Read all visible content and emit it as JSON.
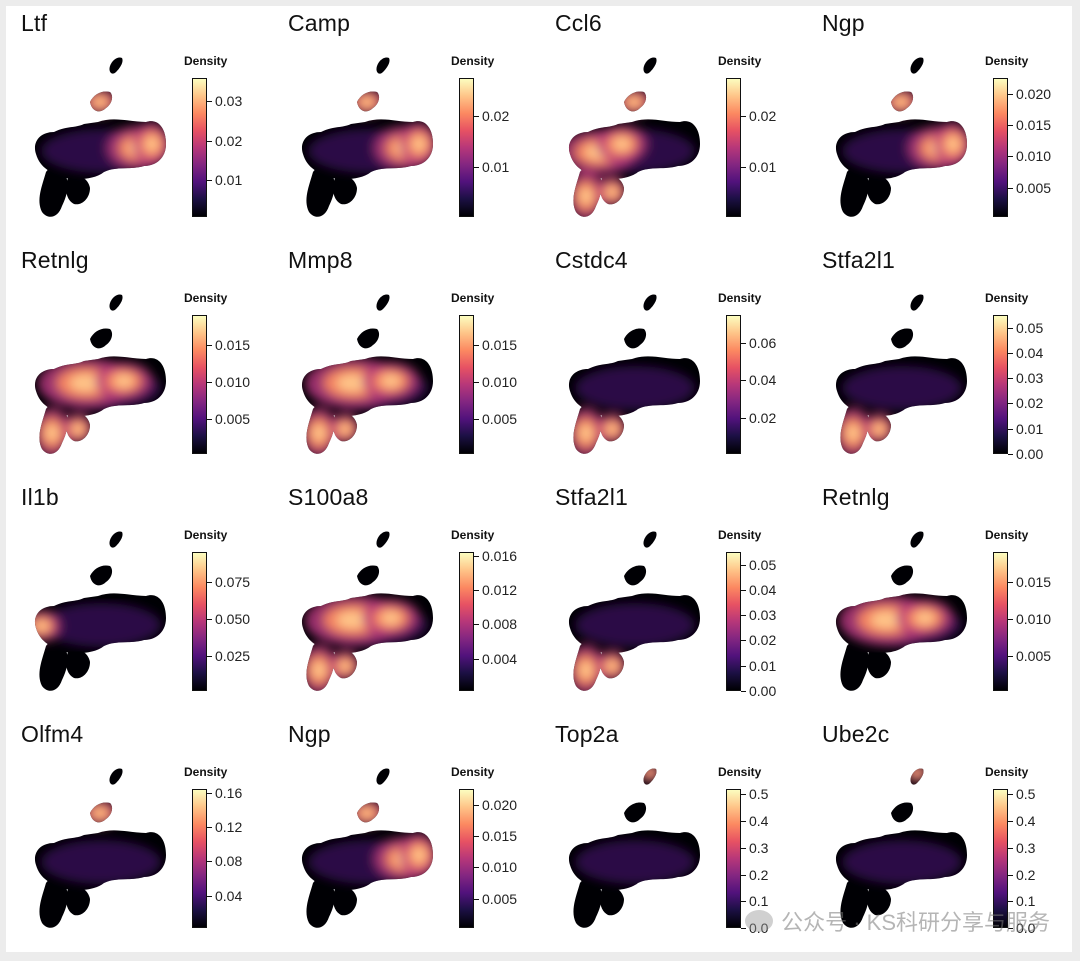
{
  "colors": {
    "scale": [
      "#000004",
      "#1c1044",
      "#51127c",
      "#832681",
      "#b73779",
      "#e75263",
      "#fc8961",
      "#fec488",
      "#fcfdbf"
    ]
  },
  "watermark": {
    "icon": "wechat-icon",
    "text": "公众号 · KS科研分享与服务"
  },
  "chart_data": [
    {
      "type": "heatmap",
      "title": "Ltf",
      "legend_title": "Density",
      "ticks": [
        "0.03",
        "0.02",
        "0.01"
      ],
      "tick_values": [
        0.03,
        0.02,
        0.01
      ],
      "range": [
        0.0005,
        0.036
      ],
      "hotspots": [
        "right-body"
      ]
    },
    {
      "type": "heatmap",
      "title": "Camp",
      "legend_title": "Density",
      "ticks": [
        "0.02",
        "0.01"
      ],
      "tick_values": [
        0.02,
        0.01
      ],
      "range": [
        0.0003,
        0.0275
      ],
      "hotspots": [
        "right-body"
      ]
    },
    {
      "type": "heatmap",
      "title": "Ccl6",
      "legend_title": "Density",
      "ticks": [
        "0.02",
        "0.01"
      ],
      "tick_values": [
        0.02,
        0.01
      ],
      "range": [
        0.0003,
        0.0275
      ],
      "hotspots": [
        "left-body",
        "lower-lobe"
      ]
    },
    {
      "type": "heatmap",
      "title": "Ngp",
      "legend_title": "Density",
      "ticks": [
        "0.020",
        "0.015",
        "0.010",
        "0.005"
      ],
      "tick_values": [
        0.02,
        0.015,
        0.01,
        0.005
      ],
      "range": [
        0.0003,
        0.0225
      ],
      "hotspots": [
        "right-body"
      ]
    },
    {
      "type": "heatmap",
      "title": "Retnlg",
      "legend_title": "Density",
      "ticks": [
        "0.015",
        "0.010",
        "0.005"
      ],
      "tick_values": [
        0.015,
        0.01,
        0.005
      ],
      "range": [
        0.0003,
        0.019
      ],
      "hotspots": [
        "mid-body",
        "lower-lobe"
      ]
    },
    {
      "type": "heatmap",
      "title": "Mmp8",
      "legend_title": "Density",
      "ticks": [
        "0.015",
        "0.010",
        "0.005"
      ],
      "tick_values": [
        0.015,
        0.01,
        0.005
      ],
      "range": [
        0.0003,
        0.019
      ],
      "hotspots": [
        "mid-body",
        "lower-lobe"
      ]
    },
    {
      "type": "heatmap",
      "title": "Cstdc4",
      "legend_title": "Density",
      "ticks": [
        "0.06",
        "0.04",
        "0.02"
      ],
      "tick_values": [
        0.06,
        0.04,
        0.02
      ],
      "range": [
        0.0005,
        0.075
      ],
      "hotspots": [
        "lower-lobe"
      ]
    },
    {
      "type": "heatmap",
      "title": "Stfa2l1",
      "legend_title": "Density",
      "ticks": [
        "0.05",
        "0.04",
        "0.03",
        "0.02",
        "0.01",
        "0.00"
      ],
      "tick_values": [
        0.05,
        0.04,
        0.03,
        0.02,
        0.01,
        0.0
      ],
      "range": [
        0.0,
        0.055
      ],
      "hotspots": [
        "lower-lobe"
      ]
    },
    {
      "type": "heatmap",
      "title": "Il1b",
      "legend_title": "Density",
      "ticks": [
        "0.075",
        "0.050",
        "0.025"
      ],
      "tick_values": [
        0.075,
        0.05,
        0.025
      ],
      "range": [
        0.001,
        0.095
      ],
      "hotspots": [
        "far-left"
      ]
    },
    {
      "type": "heatmap",
      "title": "S100a8",
      "legend_title": "Density",
      "ticks": [
        "0.016",
        "0.012",
        "0.008",
        "0.004"
      ],
      "tick_values": [
        0.016,
        0.012,
        0.008,
        0.004
      ],
      "range": [
        0.0002,
        0.0165
      ],
      "hotspots": [
        "mid-body",
        "lower-lobe"
      ]
    },
    {
      "type": "heatmap",
      "title": "Stfa2l1",
      "legend_title": "Density",
      "ticks": [
        "0.05",
        "0.04",
        "0.03",
        "0.02",
        "0.01",
        "0.00"
      ],
      "tick_values": [
        0.05,
        0.04,
        0.03,
        0.02,
        0.01,
        0.0
      ],
      "range": [
        0.0,
        0.055
      ],
      "hotspots": [
        "lower-lobe"
      ]
    },
    {
      "type": "heatmap",
      "title": "Retnlg",
      "legend_title": "Density",
      "ticks": [
        "0.015",
        "0.010",
        "0.005"
      ],
      "tick_values": [
        0.015,
        0.01,
        0.005
      ],
      "range": [
        0.0003,
        0.019
      ],
      "hotspots": [
        "mid-body"
      ]
    },
    {
      "type": "heatmap",
      "title": "Olfm4",
      "legend_title": "Density",
      "ticks": [
        "0.16",
        "0.12",
        "0.08",
        "0.04"
      ],
      "tick_values": [
        0.16,
        0.12,
        0.08,
        0.04
      ],
      "range": [
        0.002,
        0.165
      ],
      "hotspots": [
        "upper-islet"
      ]
    },
    {
      "type": "heatmap",
      "title": "Ngp",
      "legend_title": "Density",
      "ticks": [
        "0.020",
        "0.015",
        "0.010",
        "0.005"
      ],
      "tick_values": [
        0.02,
        0.015,
        0.01,
        0.005
      ],
      "range": [
        0.0003,
        0.0225
      ],
      "hotspots": [
        "right-body"
      ]
    },
    {
      "type": "heatmap",
      "title": "Top2a",
      "legend_title": "Density",
      "ticks": [
        "0.5",
        "0.4",
        "0.3",
        "0.2",
        "0.1",
        "0.0"
      ],
      "tick_values": [
        0.5,
        0.4,
        0.3,
        0.2,
        0.1,
        0.0
      ],
      "range": [
        0.0,
        0.52
      ],
      "hotspots": [
        "top-tip"
      ]
    },
    {
      "type": "heatmap",
      "title": "Ube2c",
      "legend_title": "Density",
      "ticks": [
        "0.5",
        "0.4",
        "0.3",
        "0.2",
        "0.1",
        "0.0"
      ],
      "tick_values": [
        0.5,
        0.4,
        0.3,
        0.2,
        0.1,
        0.0
      ],
      "range": [
        0.0,
        0.52
      ],
      "hotspots": [
        "top-tip"
      ]
    }
  ]
}
